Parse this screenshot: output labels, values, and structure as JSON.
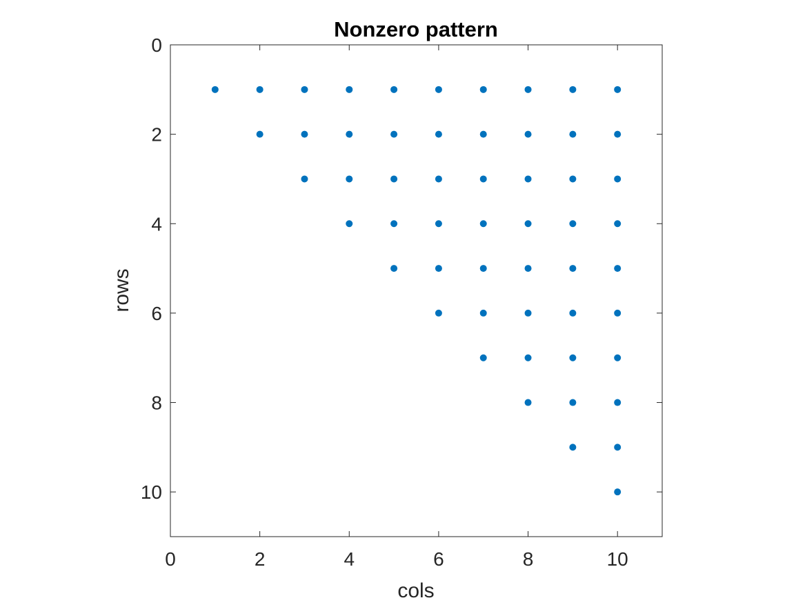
{
  "chart_data": {
    "type": "scatter",
    "title": "Nonzero pattern",
    "xlabel": "cols",
    "ylabel": "rows",
    "xlim": [
      0,
      11
    ],
    "ylim": [
      0,
      11
    ],
    "y_reversed": true,
    "xticks": [
      0,
      2,
      4,
      6,
      8,
      10
    ],
    "yticks": [
      0,
      2,
      4,
      6,
      8,
      10
    ],
    "grid": false,
    "marker_color": "#0072BD",
    "pattern": "upper-triangular",
    "matrix_size": 10,
    "series": [
      {
        "points": [
          [
            1,
            1
          ],
          [
            2,
            1
          ],
          [
            3,
            1
          ],
          [
            4,
            1
          ],
          [
            5,
            1
          ],
          [
            6,
            1
          ],
          [
            7,
            1
          ],
          [
            8,
            1
          ],
          [
            9,
            1
          ],
          [
            10,
            1
          ],
          [
            2,
            2
          ],
          [
            3,
            2
          ],
          [
            4,
            2
          ],
          [
            5,
            2
          ],
          [
            6,
            2
          ],
          [
            7,
            2
          ],
          [
            8,
            2
          ],
          [
            9,
            2
          ],
          [
            10,
            2
          ],
          [
            3,
            3
          ],
          [
            4,
            3
          ],
          [
            5,
            3
          ],
          [
            6,
            3
          ],
          [
            7,
            3
          ],
          [
            8,
            3
          ],
          [
            9,
            3
          ],
          [
            10,
            3
          ],
          [
            4,
            4
          ],
          [
            5,
            4
          ],
          [
            6,
            4
          ],
          [
            7,
            4
          ],
          [
            8,
            4
          ],
          [
            9,
            4
          ],
          [
            10,
            4
          ],
          [
            5,
            5
          ],
          [
            6,
            5
          ],
          [
            7,
            5
          ],
          [
            8,
            5
          ],
          [
            9,
            5
          ],
          [
            10,
            5
          ],
          [
            6,
            6
          ],
          [
            7,
            6
          ],
          [
            8,
            6
          ],
          [
            9,
            6
          ],
          [
            10,
            6
          ],
          [
            7,
            7
          ],
          [
            8,
            7
          ],
          [
            9,
            7
          ],
          [
            10,
            7
          ],
          [
            8,
            8
          ],
          [
            9,
            8
          ],
          [
            10,
            8
          ],
          [
            9,
            9
          ],
          [
            10,
            9
          ],
          [
            10,
            10
          ]
        ]
      }
    ]
  }
}
